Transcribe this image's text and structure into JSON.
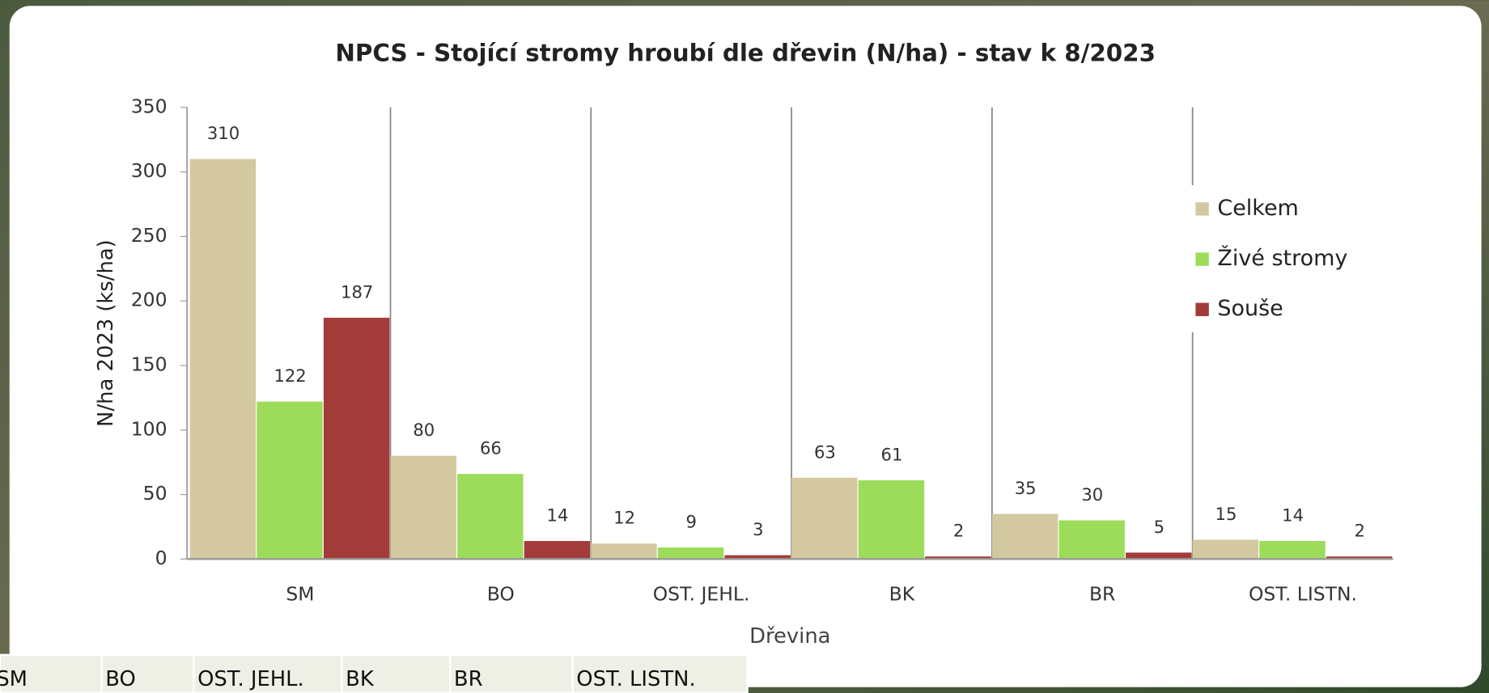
{
  "chart_data": {
    "type": "bar",
    "title": "NPCS - Stojící stromy hroubí  dle dřevin  (N/ha) - stav k 8/2023",
    "xlabel": "Dřevina",
    "ylabel": "N/ha 2023 (ks/ha)",
    "categories": [
      "SM",
      "BO",
      "OST. JEHL.",
      "BK",
      "BR",
      "OST. LISTN."
    ],
    "series": [
      {
        "name": "Celkem",
        "color": "#d3c8a0",
        "values": [
          310,
          80,
          12,
          63,
          35,
          15
        ]
      },
      {
        "name": "Živé stromy",
        "color": "#9ddc5a",
        "values": [
          122,
          66,
          9,
          61,
          30,
          14
        ]
      },
      {
        "name": "Souše",
        "color": "#a33b3b",
        "values": [
          187,
          14,
          3,
          2,
          5,
          2
        ]
      }
    ],
    "ylim": [
      0,
      350
    ],
    "yticks": [
      0,
      50,
      100,
      150,
      200,
      250,
      300,
      350
    ],
    "legend": "right"
  },
  "table": {
    "cells": [
      "SM",
      "BO",
      "OST. JEHL.",
      "BK",
      "BR",
      "OST. LISTN."
    ]
  }
}
